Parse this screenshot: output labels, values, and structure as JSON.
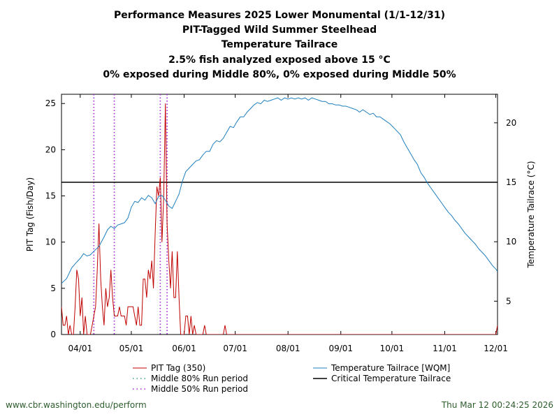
{
  "titles": [
    "Performance Measures 2025 Lower Monumental (1/1-12/31)",
    "PIT-Tagged Wild Summer Steelhead",
    "Temperature Tailrace",
    "2.5% fish analyzed exposed above 15 °C",
    "0% exposed during Middle 80%, 0% exposed during Middle 50%"
  ],
  "footer": {
    "left": "www.cbr.washington.edu/perform",
    "right": "Thu Mar 12 00:24:25 2026"
  },
  "colors": {
    "pit": "#c00000",
    "temp": "#1f7fbf",
    "mid80": "#3aa87a",
    "mid50": "#b020e0",
    "critical": "#000000"
  },
  "chart_data": {
    "type": "line",
    "xlabel": "",
    "ylabel": "PIT Tag (Fish/Day)",
    "y2label": "Temperature Tailrace (°C)",
    "xlim": [
      80,
      336
    ],
    "ylim": [
      0,
      26
    ],
    "y2lim": [
      2.2,
      22.4
    ],
    "x_unit": "day-of-year 2025",
    "x_ticks": [
      {
        "day": 91,
        "label": "04/01"
      },
      {
        "day": 121,
        "label": "05/01"
      },
      {
        "day": 152,
        "label": "06/01"
      },
      {
        "day": 182,
        "label": "07/01"
      },
      {
        "day": 213,
        "label": "08/01"
      },
      {
        "day": 244,
        "label": "09/01"
      },
      {
        "day": 274,
        "label": "10/01"
      },
      {
        "day": 305,
        "label": "11/01"
      },
      {
        "day": 335,
        "label": "12/01"
      }
    ],
    "y_ticks": [
      0,
      5,
      10,
      15,
      20,
      25
    ],
    "y2_ticks": [
      5,
      10,
      15,
      20
    ],
    "critical_temperature": 15,
    "middle_80_days": [
      99,
      111,
      138,
      142
    ],
    "middle_50_days": [
      99,
      111,
      138,
      142
    ],
    "legend": [
      {
        "key": "pit",
        "label": "PIT Tag (350)"
      },
      {
        "key": "mid80",
        "label": "Middle 80% Run period"
      },
      {
        "key": "mid50",
        "label": "Middle 50% Run period"
      },
      {
        "key": "temp",
        "label": "Temperature Tailrace [WQM]"
      },
      {
        "key": "critical",
        "label": "Critical Temperature Tailrace"
      }
    ],
    "series": [
      {
        "name": "PIT Tag (350)",
        "axis": "left",
        "points": [
          [
            80,
            3
          ],
          [
            81,
            1
          ],
          [
            82,
            1
          ],
          [
            83,
            2
          ],
          [
            84,
            0
          ],
          [
            85,
            1
          ],
          [
            86,
            0
          ],
          [
            87,
            0
          ],
          [
            88,
            3
          ],
          [
            89,
            7
          ],
          [
            90,
            6
          ],
          [
            91,
            2
          ],
          [
            92,
            4
          ],
          [
            93,
            0
          ],
          [
            94,
            2
          ],
          [
            95,
            0
          ],
          [
            96,
            0
          ],
          [
            97,
            0
          ],
          [
            98,
            1
          ],
          [
            99,
            2
          ],
          [
            100,
            3
          ],
          [
            101,
            7
          ],
          [
            102,
            12
          ],
          [
            103,
            6
          ],
          [
            104,
            3
          ],
          [
            105,
            1
          ],
          [
            106,
            5
          ],
          [
            107,
            3
          ],
          [
            108,
            4
          ],
          [
            109,
            7
          ],
          [
            110,
            4
          ],
          [
            111,
            2
          ],
          [
            112,
            2
          ],
          [
            113,
            2
          ],
          [
            114,
            3
          ],
          [
            115,
            2
          ],
          [
            116,
            2
          ],
          [
            117,
            2
          ],
          [
            118,
            1
          ],
          [
            119,
            3
          ],
          [
            120,
            3
          ],
          [
            121,
            3
          ],
          [
            122,
            3
          ],
          [
            123,
            2
          ],
          [
            124,
            1
          ],
          [
            125,
            3
          ],
          [
            126,
            1
          ],
          [
            127,
            1
          ],
          [
            128,
            6
          ],
          [
            129,
            6
          ],
          [
            130,
            4
          ],
          [
            131,
            7
          ],
          [
            132,
            6
          ],
          [
            133,
            8
          ],
          [
            134,
            5
          ],
          [
            135,
            11
          ],
          [
            136,
            16
          ],
          [
            137,
            15
          ],
          [
            138,
            17
          ],
          [
            139,
            10
          ],
          [
            140,
            15
          ],
          [
            141,
            25
          ],
          [
            142,
            12
          ],
          [
            143,
            8
          ],
          [
            144,
            5
          ],
          [
            145,
            9
          ],
          [
            146,
            4
          ],
          [
            147,
            4
          ],
          [
            148,
            9
          ],
          [
            149,
            4
          ],
          [
            150,
            0
          ],
          [
            151,
            0
          ],
          [
            152,
            0
          ],
          [
            153,
            2
          ],
          [
            154,
            2
          ],
          [
            155,
            0
          ],
          [
            156,
            2
          ],
          [
            157,
            0
          ],
          [
            158,
            1
          ],
          [
            159,
            0
          ],
          [
            160,
            0
          ],
          [
            161,
            0
          ],
          [
            162,
            0
          ],
          [
            163,
            0
          ],
          [
            164,
            1
          ],
          [
            165,
            0
          ],
          [
            166,
            0
          ],
          [
            175,
            0
          ],
          [
            176,
            1
          ],
          [
            177,
            0
          ],
          [
            335,
            0
          ],
          [
            336,
            1
          ]
        ]
      },
      {
        "name": "Temperature Tailrace [WQM]",
        "axis": "right",
        "points": [
          [
            80,
            6.5
          ],
          [
            83,
            6.9
          ],
          [
            86,
            7.8
          ],
          [
            89,
            8.3
          ],
          [
            91,
            8.6
          ],
          [
            93,
            9.0
          ],
          [
            95,
            8.8
          ],
          [
            97,
            8.9
          ],
          [
            99,
            9.2
          ],
          [
            102,
            9.6
          ],
          [
            105,
            10.4
          ],
          [
            107,
            11.0
          ],
          [
            109,
            11.3
          ],
          [
            111,
            11.1
          ],
          [
            113,
            11.4
          ],
          [
            115,
            11.5
          ],
          [
            117,
            11.6
          ],
          [
            119,
            12.0
          ],
          [
            121,
            12.9
          ],
          [
            123,
            13.4
          ],
          [
            125,
            13.3
          ],
          [
            127,
            13.7
          ],
          [
            129,
            13.5
          ],
          [
            131,
            13.9
          ],
          [
            133,
            13.7
          ],
          [
            135,
            13.2
          ],
          [
            137,
            13.8
          ],
          [
            139,
            13.9
          ],
          [
            141,
            13.5
          ],
          [
            143,
            13.0
          ],
          [
            145,
            12.8
          ],
          [
            147,
            13.4
          ],
          [
            149,
            14.0
          ],
          [
            151,
            15.1
          ],
          [
            153,
            15.9
          ],
          [
            155,
            16.2
          ],
          [
            157,
            16.5
          ],
          [
            159,
            16.8
          ],
          [
            161,
            16.9
          ],
          [
            163,
            17.3
          ],
          [
            165,
            17.6
          ],
          [
            167,
            17.6
          ],
          [
            169,
            18.2
          ],
          [
            171,
            18.5
          ],
          [
            173,
            18.4
          ],
          [
            175,
            18.7
          ],
          [
            177,
            19.2
          ],
          [
            179,
            19.7
          ],
          [
            181,
            19.6
          ],
          [
            183,
            20.1
          ],
          [
            185,
            20.5
          ],
          [
            187,
            20.5
          ],
          [
            189,
            20.9
          ],
          [
            191,
            21.2
          ],
          [
            193,
            21.5
          ],
          [
            195,
            21.7
          ],
          [
            197,
            21.6
          ],
          [
            199,
            21.9
          ],
          [
            201,
            21.8
          ],
          [
            203,
            21.9
          ],
          [
            205,
            22.0
          ],
          [
            207,
            22.1
          ],
          [
            209,
            21.9
          ],
          [
            211,
            22.1
          ],
          [
            213,
            22.0
          ],
          [
            215,
            22.1
          ],
          [
            217,
            22.0
          ],
          [
            219,
            22.1
          ],
          [
            221,
            22.0
          ],
          [
            223,
            22.1
          ],
          [
            225,
            21.9
          ],
          [
            227,
            22.1
          ],
          [
            229,
            22.0
          ],
          [
            231,
            21.9
          ],
          [
            233,
            21.8
          ],
          [
            235,
            21.8
          ],
          [
            237,
            21.6
          ],
          [
            239,
            21.6
          ],
          [
            241,
            21.5
          ],
          [
            243,
            21.5
          ],
          [
            245,
            21.4
          ],
          [
            247,
            21.4
          ],
          [
            249,
            21.3
          ],
          [
            251,
            21.2
          ],
          [
            253,
            21.1
          ],
          [
            255,
            20.9
          ],
          [
            257,
            21.1
          ],
          [
            259,
            20.9
          ],
          [
            261,
            20.7
          ],
          [
            263,
            20.8
          ],
          [
            265,
            20.5
          ],
          [
            267,
            20.5
          ],
          [
            269,
            20.3
          ],
          [
            271,
            20.1
          ],
          [
            273,
            19.9
          ],
          [
            275,
            19.6
          ],
          [
            277,
            19.3
          ],
          [
            279,
            19.0
          ],
          [
            281,
            18.4
          ],
          [
            283,
            17.9
          ],
          [
            285,
            17.4
          ],
          [
            287,
            16.9
          ],
          [
            289,
            16.5
          ],
          [
            291,
            15.8
          ],
          [
            293,
            15.4
          ],
          [
            295,
            14.9
          ],
          [
            297,
            14.5
          ],
          [
            299,
            14.1
          ],
          [
            301,
            13.7
          ],
          [
            303,
            13.3
          ],
          [
            305,
            12.9
          ],
          [
            307,
            12.5
          ],
          [
            309,
            12.2
          ],
          [
            311,
            11.8
          ],
          [
            313,
            11.5
          ],
          [
            315,
            11.1
          ],
          [
            317,
            10.7
          ],
          [
            319,
            10.4
          ],
          [
            321,
            10.1
          ],
          [
            323,
            9.8
          ],
          [
            325,
            9.4
          ],
          [
            327,
            9.1
          ],
          [
            329,
            8.8
          ],
          [
            331,
            8.4
          ],
          [
            333,
            8.0
          ],
          [
            335,
            7.7
          ],
          [
            336,
            7.5
          ]
        ]
      }
    ]
  }
}
